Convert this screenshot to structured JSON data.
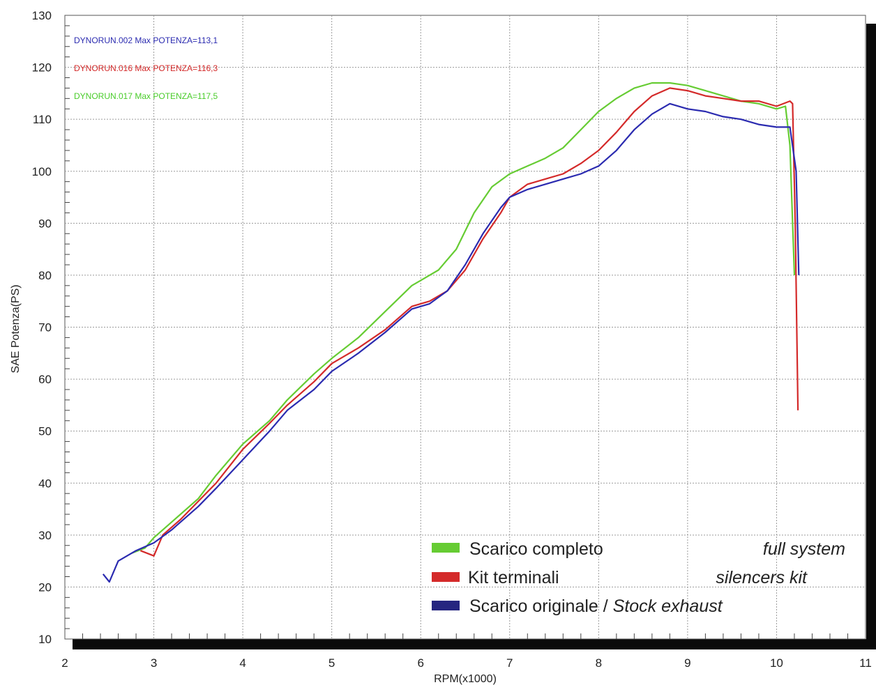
{
  "chart_data": {
    "type": "line",
    "xlabel": "RPM(x1000)",
    "ylabel": "SAE Potenza(PS)",
    "xlim": [
      2,
      11
    ],
    "ylim": [
      10,
      130
    ],
    "x_ticks": [
      2,
      3,
      4,
      5,
      6,
      7,
      8,
      9,
      10,
      11
    ],
    "y_ticks": [
      10,
      20,
      30,
      40,
      50,
      60,
      70,
      80,
      90,
      100,
      110,
      120,
      130
    ],
    "grid": true,
    "run_labels": [
      {
        "text": "DYNORUN.002  Max POTENZA=113,1",
        "color": "#2b2bb0"
      },
      {
        "text": "DYNORUN.016  Max POTENZA=116,3",
        "color": "#d42a2a"
      },
      {
        "text": "DYNORUN.017  Max POTENZA=117,5",
        "color": "#49cc2a"
      }
    ],
    "legend": {
      "position": "bottom-right",
      "entries": [
        {
          "color": "#66cc33",
          "label": "Scarico completo",
          "label_en": "full system"
        },
        {
          "color": "#d42a2a",
          "label": "Kit terminali",
          "label_en": "silencers kit"
        },
        {
          "color": "#262680",
          "label": "Scarico originale / ",
          "label_en": "Stock exhaust"
        }
      ]
    },
    "series": [
      {
        "color": "#2b2bb0",
        "x": [
          2.43,
          2.5,
          2.6,
          2.8,
          3.0,
          3.2,
          3.5,
          3.7,
          4.0,
          4.3,
          4.5,
          4.8,
          5.0,
          5.3,
          5.6,
          5.9,
          6.1,
          6.3,
          6.5,
          6.7,
          6.9,
          7.0,
          7.2,
          7.4,
          7.6,
          7.8,
          8.0,
          8.2,
          8.4,
          8.6,
          8.8,
          9.0,
          9.2,
          9.4,
          9.6,
          9.8,
          10.0,
          10.15,
          10.22,
          10.25
        ],
        "values": [
          22.5,
          21,
          25,
          27,
          28.5,
          31,
          35.5,
          39,
          44.5,
          50,
          54,
          58,
          61.5,
          65,
          69,
          73.5,
          74.5,
          77,
          82,
          88,
          93,
          95,
          96.5,
          97.5,
          98.5,
          99.5,
          101,
          104,
          108,
          111,
          113,
          112,
          111.5,
          110.5,
          110,
          109,
          108.5,
          108.5,
          100,
          80
        ]
      },
      {
        "color": "#d42a2a",
        "x": [
          2.85,
          3.0,
          3.1,
          3.3,
          3.5,
          3.7,
          4.0,
          4.3,
          4.5,
          4.8,
          5.0,
          5.3,
          5.6,
          5.9,
          6.1,
          6.3,
          6.5,
          6.7,
          6.9,
          7.0,
          7.2,
          7.4,
          7.6,
          7.8,
          8.0,
          8.2,
          8.4,
          8.6,
          8.8,
          9.0,
          9.2,
          9.4,
          9.6,
          9.8,
          10.0,
          10.15,
          10.18,
          10.21,
          10.24
        ],
        "values": [
          27,
          26,
          30,
          33,
          36.5,
          40,
          46.5,
          51.5,
          55,
          59.5,
          63,
          66,
          69.5,
          74,
          75,
          77,
          81,
          87,
          92,
          95,
          97.5,
          98.5,
          99.5,
          101.5,
          104,
          107.5,
          111.5,
          114.5,
          116,
          115.5,
          114.5,
          114,
          113.5,
          113.5,
          112.5,
          113.5,
          113,
          90,
          54
        ]
      },
      {
        "color": "#66cc33",
        "x": [
          2.75,
          2.9,
          3.0,
          3.2,
          3.5,
          3.7,
          4.0,
          4.3,
          4.5,
          4.8,
          5.0,
          5.3,
          5.6,
          5.9,
          6.0,
          6.2,
          6.4,
          6.6,
          6.8,
          7.0,
          7.2,
          7.4,
          7.6,
          7.8,
          8.0,
          8.2,
          8.4,
          8.6,
          8.8,
          9.0,
          9.2,
          9.4,
          9.6,
          9.8,
          10.0,
          10.1,
          10.15,
          10.2
        ],
        "values": [
          26.5,
          27.5,
          29.5,
          32.5,
          37,
          41.5,
          47.5,
          52,
          56,
          61,
          64,
          68,
          73,
          78,
          79,
          81,
          85,
          92,
          97,
          99.5,
          101,
          102.5,
          104.5,
          108,
          111.5,
          114,
          116,
          117,
          117,
          116.5,
          115.5,
          114.5,
          113.5,
          113,
          112,
          112.5,
          105,
          80
        ]
      }
    ]
  }
}
